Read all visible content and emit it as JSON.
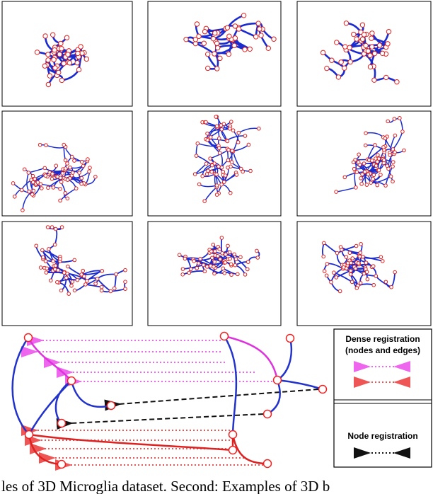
{
  "legend": {
    "dense": [
      "Dense registration",
      "(nodes and edges)"
    ],
    "node": "Node registration"
  },
  "caption": "les of 3D Microglia dataset. Second: Examples of 3D b"
}
